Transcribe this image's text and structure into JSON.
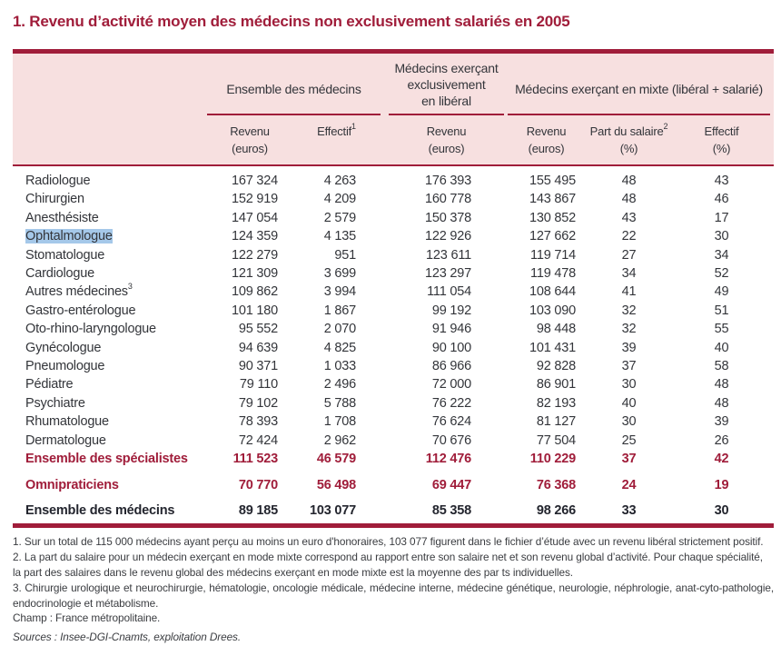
{
  "title": "1. Revenu d’activité moyen des médecins non exclusivement salariés en 2005",
  "colors": {
    "accent": "#a01d3a",
    "header_background": "#f7e0e0",
    "selection_highlight": "#a5c8e9",
    "body_text": "#33353a",
    "dark_total_row": "#23252e"
  },
  "table": {
    "groups": {
      "ensemble": "Ensemble des médecins",
      "liberal": "Médecins exerçant\nexclusivement\nen libéral",
      "mixte": "Médecins exerçant en mixte (libéral + salarié)"
    },
    "sub_headers": [
      {
        "label": "Revenu",
        "sup": "",
        "unit": "(euros)"
      },
      {
        "label": "Effectif",
        "sup": "1",
        "unit": ""
      },
      {
        "label": "Revenu",
        "sup": "",
        "unit": "(euros)"
      },
      {
        "label": "Revenu",
        "sup": "",
        "unit": "(euros)"
      },
      {
        "label": "Part du salaire",
        "sup": "2",
        "unit": "(%)"
      },
      {
        "label": "Effectif",
        "sup": "",
        "unit": "(%)"
      }
    ],
    "rows": [
      {
        "name": "Radiologue",
        "sup": "",
        "highlight": false,
        "style": "normal",
        "gap": false,
        "values": [
          "167 324",
          "4 263",
          "176 393",
          "155 495",
          "48",
          "43"
        ]
      },
      {
        "name": "Chirurgien",
        "sup": "",
        "highlight": false,
        "style": "normal",
        "gap": false,
        "values": [
          "152 919",
          "4 209",
          "160 778",
          "143 867",
          "48",
          "46"
        ]
      },
      {
        "name": "Anesthésiste",
        "sup": "",
        "highlight": false,
        "style": "normal",
        "gap": false,
        "values": [
          "147 054",
          "2 579",
          "150 378",
          "130 852",
          "43",
          "17"
        ]
      },
      {
        "name": "Ophtalmologue",
        "sup": "",
        "highlight": true,
        "style": "normal",
        "gap": false,
        "values": [
          "124 359",
          "4 135",
          "122 926",
          "127 662",
          "22",
          "30"
        ]
      },
      {
        "name": "Stomatologue",
        "sup": "",
        "highlight": false,
        "style": "normal",
        "gap": false,
        "values": [
          "122 279",
          "951",
          "123 611",
          "119 714",
          "27",
          "34"
        ]
      },
      {
        "name": "Cardiologue",
        "sup": "",
        "highlight": false,
        "style": "normal",
        "gap": false,
        "values": [
          "121 309",
          "3 699",
          "123 297",
          "119 478",
          "34",
          "52"
        ]
      },
      {
        "name": "Autres médecines",
        "sup": "3",
        "highlight": false,
        "style": "normal",
        "gap": false,
        "values": [
          "109 862",
          "3 994",
          "111 054",
          "108 644",
          "41",
          "49"
        ]
      },
      {
        "name": "Gastro-entérologue",
        "sup": "",
        "highlight": false,
        "style": "normal",
        "gap": false,
        "values": [
          "101 180",
          "1 867",
          "99 192",
          "103 090",
          "32",
          "51"
        ]
      },
      {
        "name": "Oto-rhino-laryngologue",
        "sup": "",
        "highlight": false,
        "style": "normal",
        "gap": false,
        "values": [
          "95 552",
          "2 070",
          "91 946",
          "98 448",
          "32",
          "55"
        ]
      },
      {
        "name": "Gynécologue",
        "sup": "",
        "highlight": false,
        "style": "normal",
        "gap": false,
        "values": [
          "94 639",
          "4 825",
          "90 100",
          "101 431",
          "39",
          "40"
        ]
      },
      {
        "name": "Pneumologue",
        "sup": "",
        "highlight": false,
        "style": "normal",
        "gap": false,
        "values": [
          "90 371",
          "1 033",
          "86 966",
          "92 828",
          "37",
          "58"
        ]
      },
      {
        "name": "Pédiatre",
        "sup": "",
        "highlight": false,
        "style": "normal",
        "gap": false,
        "values": [
          "79 110",
          "2 496",
          "72 000",
          "86 901",
          "30",
          "48"
        ]
      },
      {
        "name": "Psychiatre",
        "sup": "",
        "highlight": false,
        "style": "normal",
        "gap": false,
        "values": [
          "79 102",
          "5 788",
          "76 222",
          "82 193",
          "40",
          "48"
        ]
      },
      {
        "name": "Rhumatologue",
        "sup": "",
        "highlight": false,
        "style": "normal",
        "gap": false,
        "values": [
          "78 393",
          "1 708",
          "76 624",
          "81 127",
          "30",
          "39"
        ]
      },
      {
        "name": "Dermatologue",
        "sup": "",
        "highlight": false,
        "style": "normal",
        "gap": false,
        "values": [
          "72 424",
          "2 962",
          "70 676",
          "77 504",
          "25",
          "26"
        ]
      },
      {
        "name": "Ensemble des spécialistes",
        "sup": "",
        "highlight": false,
        "style": "red",
        "gap": false,
        "values": [
          "111 523",
          "46 579",
          "112 476",
          "110 229",
          "37",
          "42"
        ]
      },
      {
        "name": "Omnipraticiens",
        "sup": "",
        "highlight": false,
        "style": "red",
        "gap": true,
        "values": [
          "70 770",
          "56 498",
          "69 447",
          "76 368",
          "24",
          "19"
        ]
      },
      {
        "name": "Ensemble des médecins",
        "sup": "",
        "highlight": false,
        "style": "dark",
        "gap": true,
        "values": [
          "89 185",
          "103 077",
          "85 358",
          "98 266",
          "33",
          "30"
        ]
      }
    ]
  },
  "footnotes": {
    "note1": "1. Sur un total de 115 000 médecins ayant perçu au moins un euro d'honoraires, 103 077 figurent dans le fichier d’étude avec un revenu libéral strictement positif.",
    "note2": "2. La part du salaire pour un médecin exerçant en mode mixte correspond au rapport entre son salaire net et son revenu global d’activité. Pour chaque spécialité, la part des salaires dans le revenu global des médecins exerçant en mode mixte est la moyenne des par ts individuelles.",
    "note3": "3. Chirurgie urologique et neurochirurgie, hématologie, oncologie médicale, médecine interne, médecine génétique, neurologie, néphrologie, anat-cyto-pathologie, endocrinologie et métabolisme.",
    "champ": "Champ : France métropolitaine.",
    "sources": "Sources : Insee-DGI-Cnamts, exploitation Drees."
  }
}
